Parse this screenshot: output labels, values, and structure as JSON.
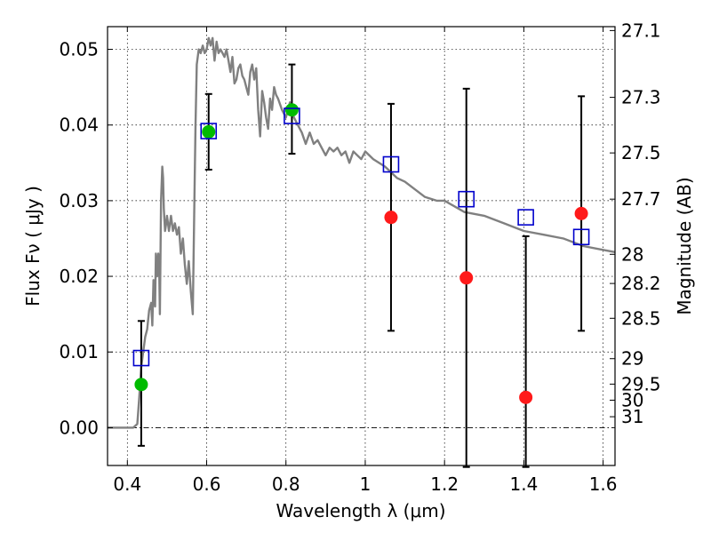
{
  "chart_data": {
    "type": "scatter",
    "title": "",
    "xlabel": "Wavelength  λ (μm)",
    "ylabel": "Flux  Fν  ( μJy )",
    "ylabel_right": "Magnitude (AB)",
    "xlim": [
      0.35,
      1.63
    ],
    "ylim": [
      -0.005,
      0.053
    ],
    "grid": true,
    "x_ticks": [
      {
        "value": 0.4,
        "label": "0.4"
      },
      {
        "value": 0.6,
        "label": "0.6"
      },
      {
        "value": 0.8,
        "label": "0.8"
      },
      {
        "value": 1.0,
        "label": "1"
      },
      {
        "value": 1.2,
        "label": "1.2"
      },
      {
        "value": 1.4,
        "label": "1.4"
      },
      {
        "value": 1.6,
        "label": "1.6"
      }
    ],
    "y_ticks": [
      {
        "value": 0.0,
        "label": "0.00"
      },
      {
        "value": 0.01,
        "label": "0.01"
      },
      {
        "value": 0.02,
        "label": "0.02"
      },
      {
        "value": 0.03,
        "label": "0.03"
      },
      {
        "value": 0.04,
        "label": "0.04"
      },
      {
        "value": 0.05,
        "label": "0.05"
      }
    ],
    "right_ticks": [
      {
        "mag": 27.1,
        "label": "27.1"
      },
      {
        "mag": 27.3,
        "label": "27.3"
      },
      {
        "mag": 27.5,
        "label": "27.5"
      },
      {
        "mag": 27.7,
        "label": "27.7"
      },
      {
        "mag": 28.0,
        "label": "28"
      },
      {
        "mag": 28.2,
        "label": "28.2"
      },
      {
        "mag": 28.5,
        "label": "28.5"
      },
      {
        "mag": 29.0,
        "label": "29"
      },
      {
        "mag": 29.5,
        "label": "29.5"
      },
      {
        "mag": 30.0,
        "label": "30"
      },
      {
        "mag": 31.0,
        "label": "31"
      }
    ],
    "zero_line": 0.0,
    "model_spectrum": {
      "color": "#808080",
      "x": [
        0.35,
        0.4,
        0.415,
        0.425,
        0.43,
        0.435,
        0.44,
        0.445,
        0.45,
        0.455,
        0.46,
        0.463,
        0.466,
        0.47,
        0.472,
        0.475,
        0.478,
        0.48,
        0.482,
        0.485,
        0.488,
        0.49,
        0.492,
        0.495,
        0.498,
        0.5,
        0.505,
        0.51,
        0.515,
        0.52,
        0.525,
        0.53,
        0.535,
        0.54,
        0.545,
        0.55,
        0.555,
        0.56,
        0.565,
        0.57,
        0.572,
        0.575,
        0.58,
        0.585,
        0.59,
        0.595,
        0.6,
        0.605,
        0.61,
        0.615,
        0.62,
        0.625,
        0.63,
        0.635,
        0.64,
        0.645,
        0.65,
        0.655,
        0.66,
        0.665,
        0.67,
        0.675,
        0.68,
        0.685,
        0.69,
        0.695,
        0.7,
        0.705,
        0.71,
        0.715,
        0.72,
        0.725,
        0.73,
        0.735,
        0.74,
        0.745,
        0.75,
        0.755,
        0.76,
        0.765,
        0.77,
        0.775,
        0.78,
        0.79,
        0.8,
        0.81,
        0.82,
        0.83,
        0.84,
        0.85,
        0.86,
        0.87,
        0.88,
        0.89,
        0.9,
        0.91,
        0.92,
        0.93,
        0.94,
        0.95,
        0.96,
        0.97,
        0.98,
        0.99,
        1.0,
        1.02,
        1.05,
        1.08,
        1.1,
        1.15,
        1.18,
        1.2,
        1.25,
        1.3,
        1.35,
        1.4,
        1.45,
        1.5,
        1.55,
        1.6,
        1.63
      ],
      "y": [
        0.0,
        0.0,
        0.0,
        0.0005,
        0.004,
        0.008,
        0.01,
        0.012,
        0.013,
        0.0155,
        0.0165,
        0.0135,
        0.0195,
        0.016,
        0.023,
        0.02,
        0.023,
        0.022,
        0.015,
        0.03,
        0.0345,
        0.033,
        0.029,
        0.026,
        0.027,
        0.028,
        0.026,
        0.028,
        0.026,
        0.027,
        0.0255,
        0.0265,
        0.023,
        0.025,
        0.0215,
        0.019,
        0.022,
        0.018,
        0.015,
        0.033,
        0.04,
        0.048,
        0.05,
        0.0495,
        0.0505,
        0.0495,
        0.05,
        0.0515,
        0.0505,
        0.0515,
        0.0485,
        0.051,
        0.0495,
        0.05,
        0.0495,
        0.049,
        0.05,
        0.0485,
        0.047,
        0.049,
        0.0455,
        0.046,
        0.0475,
        0.048,
        0.0465,
        0.046,
        0.045,
        0.044,
        0.047,
        0.048,
        0.046,
        0.0475,
        0.042,
        0.0385,
        0.0445,
        0.043,
        0.041,
        0.0395,
        0.0435,
        0.042,
        0.045,
        0.044,
        0.0435,
        0.042,
        0.041,
        0.043,
        0.041,
        0.04,
        0.039,
        0.0375,
        0.039,
        0.0375,
        0.038,
        0.037,
        0.036,
        0.037,
        0.0365,
        0.037,
        0.036,
        0.0365,
        0.035,
        0.0365,
        0.036,
        0.0355,
        0.0365,
        0.0355,
        0.0345,
        0.033,
        0.0325,
        0.0305,
        0.03,
        0.03,
        0.0285,
        0.028,
        0.027,
        0.026,
        0.0255,
        0.025,
        0.024,
        0.0235,
        0.0232
      ]
    },
    "series": [
      {
        "marker": "circle",
        "color": "#00bb00",
        "points": [
          {
            "x": 0.435,
            "y": 0.0057
          },
          {
            "x": 0.605,
            "y": 0.0391
          },
          {
            "x": 0.815,
            "y": 0.042
          }
        ]
      },
      {
        "marker": "circle",
        "color": "#ff1a1a",
        "points": [
          {
            "x": 1.065,
            "y": 0.0278
          },
          {
            "x": 1.255,
            "y": 0.0198
          },
          {
            "x": 1.405,
            "y": 0.004
          },
          {
            "x": 1.545,
            "y": 0.0283
          }
        ]
      },
      {
        "marker": "square-open",
        "color": "#0000cc",
        "points": [
          {
            "x": 0.435,
            "y": 0.0092
          },
          {
            "x": 0.605,
            "y": 0.0392
          },
          {
            "x": 0.815,
            "y": 0.0412
          },
          {
            "x": 1.065,
            "y": 0.0348
          },
          {
            "x": 1.255,
            "y": 0.0302
          },
          {
            "x": 1.405,
            "y": 0.0278
          },
          {
            "x": 1.545,
            "y": 0.0252
          }
        ]
      }
    ],
    "error_bars": [
      {
        "x": 0.435,
        "low": -0.0024,
        "high": 0.0141
      },
      {
        "x": 0.605,
        "low": 0.0341,
        "high": 0.0441
      },
      {
        "x": 0.815,
        "low": 0.0362,
        "high": 0.048
      },
      {
        "x": 1.065,
        "low": 0.0128,
        "high": 0.0428
      },
      {
        "x": 1.255,
        "low": -0.0052,
        "high": 0.0448
      },
      {
        "x": 1.405,
        "low": -0.0052,
        "high": 0.0253
      },
      {
        "x": 1.545,
        "low": 0.0128,
        "high": 0.0438
      }
    ]
  }
}
